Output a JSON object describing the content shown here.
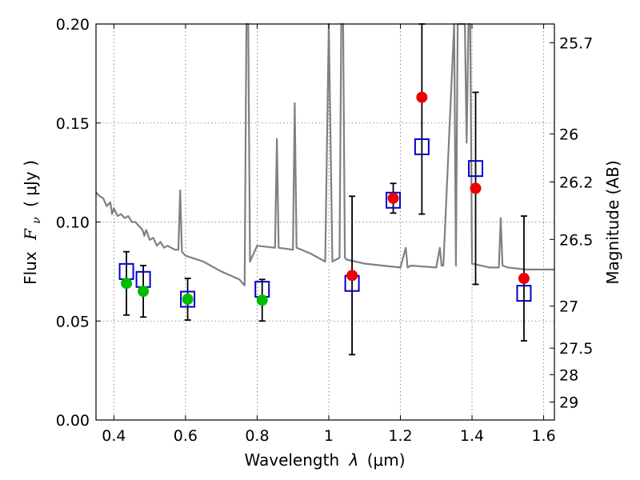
{
  "chart_data": {
    "type": "scatter",
    "xlabel_prefix": "Wavelength",
    "xlabel_symbol": "λ",
    "xlabel_unit": "(μm)",
    "ylabel_prefix": "Flux",
    "ylabel_symbol": "F",
    "ylabel_subscript": "ν",
    "ylabel_unit": "( μJy )",
    "y2label": "Magnitude (AB)",
    "xlim": [
      0.35,
      1.63
    ],
    "ylim": [
      0.0,
      0.2
    ],
    "xticks": [
      0.4,
      0.6,
      0.8,
      1.0,
      1.2,
      1.4,
      1.6
    ],
    "xtick_labels": [
      "0.4",
      "0.6",
      "0.8",
      "1",
      "1.2",
      "1.4",
      "1.6"
    ],
    "yticks": [
      0.0,
      0.05,
      0.1,
      0.15,
      0.2
    ],
    "ytick_labels": [
      "0.00",
      "0.05",
      "0.10",
      "0.15",
      "0.20"
    ],
    "mag_ticks": [
      {
        "label": "25.7",
        "flux": 0.1905
      },
      {
        "label": "26",
        "flux": 0.1445
      },
      {
        "label": "26.2",
        "flux": 0.1202
      },
      {
        "label": "26.5",
        "flux": 0.0912
      },
      {
        "label": "27",
        "flux": 0.0575
      },
      {
        "label": "27.5",
        "flux": 0.0363
      },
      {
        "label": "28",
        "flux": 0.0229
      },
      {
        "label": "29",
        "flux": 0.0091
      }
    ],
    "grid": true,
    "colors": {
      "model": "#808080",
      "model_squares": "#0000cc",
      "ground_points": "#00bb00",
      "ir_points": "#ee0000",
      "errorbar": "#000000"
    },
    "series": [
      {
        "name": "model spectrum",
        "style": "line",
        "x": [
          0.35,
          0.36,
          0.37,
          0.38,
          0.39,
          0.395,
          0.4,
          0.41,
          0.42,
          0.43,
          0.44,
          0.45,
          0.46,
          0.47,
          0.48,
          0.485,
          0.49,
          0.5,
          0.51,
          0.52,
          0.53,
          0.54,
          0.55,
          0.56,
          0.57,
          0.58,
          0.585,
          0.59,
          0.6,
          0.65,
          0.7,
          0.75,
          0.765,
          0.77,
          0.775,
          0.78,
          0.8,
          0.85,
          0.855,
          0.86,
          0.9,
          0.905,
          0.91,
          0.95,
          0.99,
          1.0,
          1.01,
          1.03,
          1.035,
          1.04,
          1.045,
          1.05,
          1.1,
          1.15,
          1.2,
          1.215,
          1.22,
          1.23,
          1.3,
          1.31,
          1.315,
          1.32,
          1.35,
          1.355,
          1.36,
          1.38,
          1.385,
          1.39,
          1.395,
          1.4,
          1.45,
          1.475,
          1.48,
          1.485,
          1.5,
          1.55,
          1.6,
          1.63
        ],
        "y": [
          0.115,
          0.113,
          0.112,
          0.108,
          0.11,
          0.104,
          0.107,
          0.103,
          0.104,
          0.102,
          0.103,
          0.1,
          0.1,
          0.098,
          0.096,
          0.093,
          0.096,
          0.091,
          0.092,
          0.088,
          0.09,
          0.087,
          0.088,
          0.087,
          0.086,
          0.086,
          0.116,
          0.085,
          0.083,
          0.08,
          0.075,
          0.071,
          0.068,
          0.2,
          0.2,
          0.08,
          0.088,
          0.087,
          0.142,
          0.087,
          0.086,
          0.16,
          0.087,
          0.084,
          0.08,
          0.2,
          0.08,
          0.082,
          0.2,
          0.2,
          0.082,
          0.081,
          0.079,
          0.078,
          0.077,
          0.087,
          0.077,
          0.078,
          0.077,
          0.087,
          0.078,
          0.078,
          0.2,
          0.078,
          0.2,
          0.2,
          0.14,
          0.2,
          0.2,
          0.079,
          0.077,
          0.077,
          0.102,
          0.078,
          0.077,
          0.076,
          0.076,
          0.076
        ]
      },
      {
        "name": "model photometry",
        "style": "open-square",
        "x": [
          0.435,
          0.482,
          0.606,
          0.814,
          1.065,
          1.18,
          1.26,
          1.41,
          1.545
        ],
        "y": [
          0.075,
          0.071,
          0.061,
          0.066,
          0.069,
          0.111,
          0.138,
          0.127,
          0.064
        ]
      },
      {
        "name": "optical detections",
        "style": "filled-circle",
        "x": [
          0.435,
          0.482,
          0.606,
          0.814
        ],
        "y": [
          0.069,
          0.065,
          0.061,
          0.0605
        ],
        "err": [
          0.016,
          0.013,
          0.0105,
          0.0105
        ]
      },
      {
        "name": "near-IR detections",
        "style": "filled-circle",
        "x": [
          1.065,
          1.18,
          1.26,
          1.41,
          1.545
        ],
        "y": [
          0.073,
          0.112,
          0.163,
          0.117,
          0.0715
        ],
        "err": [
          0.04,
          0.0075,
          0.059,
          0.0485,
          0.0315
        ]
      }
    ]
  }
}
